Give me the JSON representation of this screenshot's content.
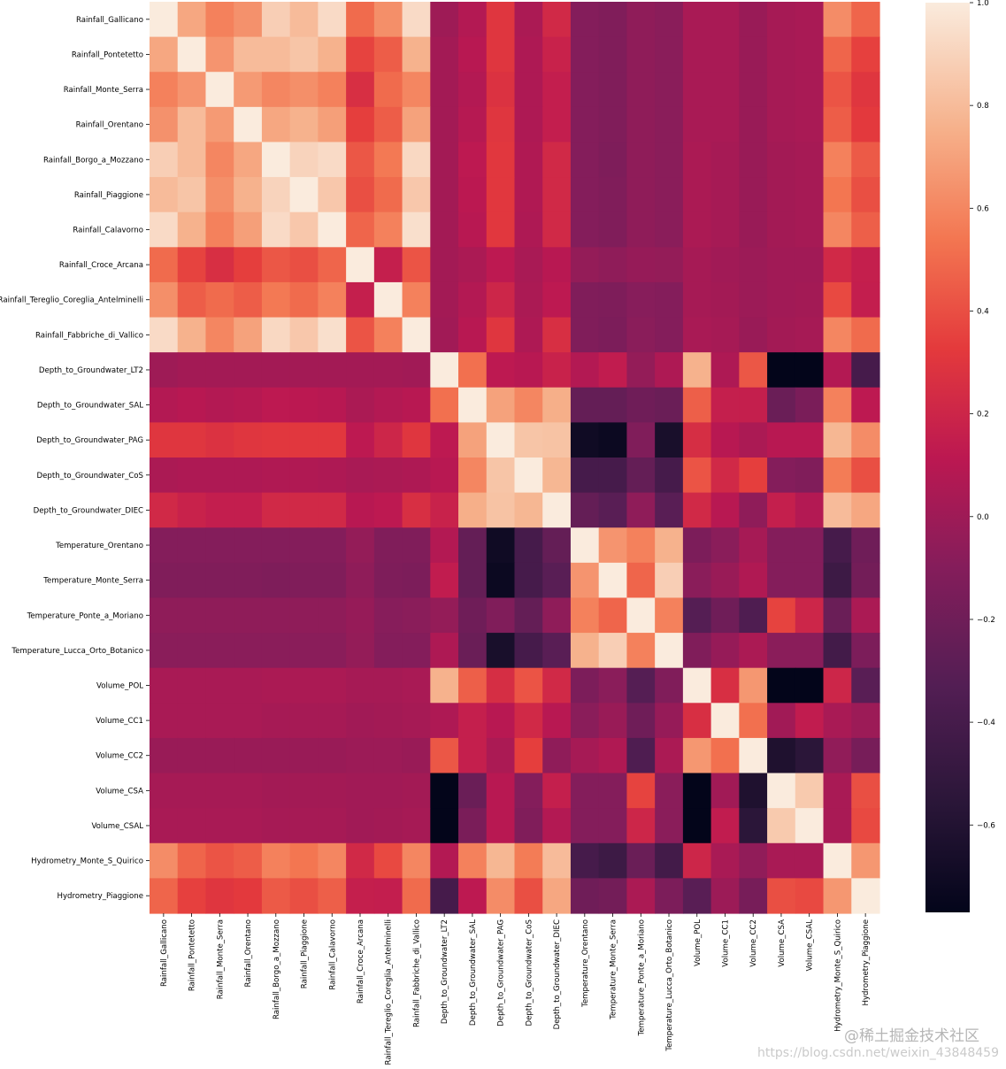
{
  "chart_data": {
    "type": "heatmap",
    "title": "",
    "colormap": "rocket",
    "vmin": -0.77,
    "vmax": 1.0,
    "colorbar_ticks": [
      1.0,
      0.8,
      0.6,
      0.4,
      0.2,
      0.0,
      -0.2,
      -0.4,
      -0.6
    ],
    "colorbar_tick_labels": [
      "1.0",
      "0.8",
      "0.6",
      "0.4",
      "0.2",
      "0.0",
      "−0.2",
      "−0.4",
      "−0.6"
    ],
    "labels": [
      "Rainfall_Gallicano",
      "Rainfall_Pontetetto",
      "Rainfall_Monte_Serra",
      "Rainfall_Orentano",
      "Rainfall_Borgo_a_Mozzano",
      "Rainfall_Piaggione",
      "Rainfall_Calavorno",
      "Rainfall_Croce_Arcana",
      "Rainfall_Tereglio_Coreglia_Antelminelli",
      "Rainfall_Fabbriche_di_Vallico",
      "Depth_to_Groundwater_LT2",
      "Depth_to_Groundwater_SAL",
      "Depth_to_Groundwater_PAG",
      "Depth_to_Groundwater_CoS",
      "Depth_to_Groundwater_DIEC",
      "Temperature_Orentano",
      "Temperature_Monte_Serra",
      "Temperature_Ponte_a_Moriano",
      "Temperature_Lucca_Orto_Botanico",
      "Volume_POL",
      "Volume_CC1",
      "Volume_CC2",
      "Volume_CSA",
      "Volume_CSAL",
      "Hydrometry_Monte_S_Quirico",
      "Hydrometry_Piaggione"
    ],
    "values": [
      [
        1.0,
        0.72,
        0.58,
        0.64,
        0.88,
        0.8,
        0.93,
        0.5,
        0.63,
        0.93,
        0.0,
        0.08,
        0.3,
        0.05,
        0.22,
        -0.1,
        -0.12,
        -0.06,
        -0.08,
        0.04,
        0.04,
        -0.02,
        0.03,
        0.04,
        0.62,
        0.48
      ],
      [
        0.72,
        1.0,
        0.65,
        0.8,
        0.8,
        0.84,
        0.76,
        0.36,
        0.45,
        0.76,
        0.02,
        0.1,
        0.3,
        0.06,
        0.18,
        -0.1,
        -0.12,
        -0.06,
        -0.08,
        0.04,
        0.04,
        -0.02,
        0.03,
        0.04,
        0.48,
        0.35
      ],
      [
        0.58,
        0.65,
        1.0,
        0.67,
        0.6,
        0.63,
        0.58,
        0.26,
        0.5,
        0.6,
        0.02,
        0.08,
        0.28,
        0.06,
        0.15,
        -0.1,
        -0.12,
        -0.06,
        -0.08,
        0.04,
        0.04,
        -0.02,
        0.03,
        0.04,
        0.42,
        0.3
      ],
      [
        0.64,
        0.8,
        0.67,
        1.0,
        0.72,
        0.76,
        0.69,
        0.34,
        0.45,
        0.7,
        0.02,
        0.09,
        0.3,
        0.06,
        0.15,
        -0.1,
        -0.12,
        -0.06,
        -0.08,
        0.04,
        0.04,
        -0.02,
        0.03,
        0.04,
        0.45,
        0.32
      ],
      [
        0.88,
        0.8,
        0.6,
        0.72,
        1.0,
        0.9,
        0.93,
        0.43,
        0.55,
        0.92,
        0.02,
        0.12,
        0.31,
        0.07,
        0.22,
        -0.1,
        -0.13,
        -0.06,
        -0.08,
        0.05,
        0.03,
        -0.02,
        0.02,
        0.03,
        0.58,
        0.44
      ],
      [
        0.8,
        0.84,
        0.63,
        0.76,
        0.9,
        1.0,
        0.85,
        0.4,
        0.5,
        0.85,
        0.02,
        0.11,
        0.31,
        0.07,
        0.22,
        -0.1,
        -0.12,
        -0.06,
        -0.08,
        0.05,
        0.03,
        -0.02,
        0.02,
        0.03,
        0.54,
        0.4
      ],
      [
        0.93,
        0.76,
        0.58,
        0.69,
        0.93,
        0.85,
        1.0,
        0.48,
        0.58,
        0.95,
        0.02,
        0.1,
        0.31,
        0.06,
        0.22,
        -0.1,
        -0.12,
        -0.06,
        -0.08,
        0.05,
        0.03,
        -0.02,
        0.02,
        0.03,
        0.6,
        0.46
      ],
      [
        0.5,
        0.36,
        0.26,
        0.34,
        0.43,
        0.4,
        0.48,
        1.0,
        0.16,
        0.42,
        0.02,
        0.05,
        0.12,
        0.04,
        0.1,
        -0.04,
        -0.06,
        -0.03,
        -0.04,
        0.03,
        0.01,
        -0.01,
        0.01,
        0.01,
        0.22,
        0.16
      ],
      [
        0.63,
        0.45,
        0.5,
        0.45,
        0.55,
        0.5,
        0.58,
        0.16,
        1.0,
        0.58,
        0.02,
        0.08,
        0.2,
        0.05,
        0.12,
        -0.12,
        -0.13,
        -0.09,
        -0.1,
        0.03,
        0.02,
        -0.01,
        0.01,
        0.02,
        0.38,
        0.15
      ],
      [
        0.93,
        0.76,
        0.6,
        0.7,
        0.92,
        0.85,
        0.95,
        0.42,
        0.58,
        1.0,
        0.01,
        0.1,
        0.3,
        0.06,
        0.26,
        -0.12,
        -0.14,
        -0.08,
        -0.1,
        0.04,
        0.03,
        -0.02,
        0.02,
        0.03,
        0.6,
        0.5
      ],
      [
        0.0,
        0.02,
        0.02,
        0.02,
        0.02,
        0.02,
        0.02,
        0.02,
        0.02,
        0.01,
        1.0,
        0.52,
        0.12,
        0.1,
        0.18,
        0.08,
        0.14,
        -0.04,
        0.06,
        0.76,
        0.06,
        0.43,
        -0.77,
        -0.77,
        0.08,
        -0.4
      ],
      [
        0.08,
        0.1,
        0.08,
        0.09,
        0.12,
        0.11,
        0.1,
        0.05,
        0.08,
        0.1,
        0.52,
        1.0,
        0.7,
        0.6,
        0.75,
        -0.25,
        -0.25,
        -0.2,
        -0.22,
        0.46,
        0.16,
        0.16,
        -0.22,
        -0.15,
        0.58,
        0.12
      ],
      [
        0.3,
        0.3,
        0.28,
        0.3,
        0.31,
        0.31,
        0.31,
        0.12,
        0.2,
        0.3,
        0.12,
        0.7,
        1.0,
        0.84,
        0.83,
        -0.7,
        -0.72,
        -0.12,
        -0.65,
        0.25,
        0.1,
        0.05,
        0.1,
        0.1,
        0.78,
        0.62
      ],
      [
        0.05,
        0.06,
        0.06,
        0.06,
        0.07,
        0.07,
        0.06,
        0.04,
        0.05,
        0.06,
        0.1,
        0.6,
        0.84,
        1.0,
        0.78,
        -0.4,
        -0.4,
        -0.25,
        -0.4,
        0.42,
        0.22,
        0.34,
        -0.1,
        -0.12,
        0.56,
        0.4
      ],
      [
        0.22,
        0.18,
        0.15,
        0.15,
        0.22,
        0.22,
        0.22,
        0.1,
        0.12,
        0.26,
        0.18,
        0.75,
        0.83,
        0.78,
        1.0,
        -0.25,
        -0.3,
        -0.06,
        -0.3,
        0.22,
        0.1,
        -0.06,
        0.16,
        0.08,
        0.8,
        0.72
      ],
      [
        -0.1,
        -0.1,
        -0.1,
        -0.1,
        -0.1,
        -0.1,
        -0.1,
        -0.04,
        -0.12,
        -0.12,
        0.08,
        -0.25,
        -0.7,
        -0.4,
        -0.25,
        1.0,
        0.65,
        0.58,
        0.76,
        -0.14,
        -0.08,
        0.03,
        -0.1,
        -0.1,
        -0.4,
        -0.2
      ],
      [
        -0.12,
        -0.12,
        -0.12,
        -0.12,
        -0.13,
        -0.12,
        -0.12,
        -0.06,
        -0.13,
        -0.14,
        0.14,
        -0.25,
        -0.72,
        -0.4,
        -0.3,
        0.65,
        1.0,
        0.48,
        0.88,
        -0.08,
        -0.02,
        0.07,
        -0.1,
        -0.1,
        -0.45,
        -0.18
      ],
      [
        -0.06,
        -0.06,
        -0.06,
        -0.06,
        -0.06,
        -0.06,
        -0.06,
        -0.03,
        -0.09,
        -0.08,
        -0.04,
        -0.2,
        -0.12,
        -0.25,
        -0.06,
        0.58,
        0.48,
        1.0,
        0.58,
        -0.32,
        -0.2,
        -0.35,
        0.36,
        0.2,
        -0.22,
        0.05
      ],
      [
        -0.08,
        -0.08,
        -0.08,
        -0.08,
        -0.08,
        -0.08,
        -0.08,
        -0.04,
        -0.1,
        -0.1,
        0.06,
        -0.22,
        -0.65,
        -0.4,
        -0.3,
        0.76,
        0.88,
        0.58,
        1.0,
        -0.12,
        -0.03,
        0.05,
        -0.08,
        -0.08,
        -0.42,
        -0.14
      ],
      [
        0.04,
        0.04,
        0.04,
        0.04,
        0.05,
        0.05,
        0.05,
        0.03,
        0.03,
        0.04,
        0.76,
        0.46,
        0.25,
        0.42,
        0.22,
        -0.14,
        -0.08,
        -0.32,
        -0.12,
        1.0,
        0.26,
        0.66,
        -0.77,
        -0.77,
        0.2,
        -0.3
      ],
      [
        0.04,
        0.04,
        0.04,
        0.04,
        0.03,
        0.03,
        0.03,
        0.01,
        0.02,
        0.03,
        0.06,
        0.16,
        0.1,
        0.22,
        0.1,
        -0.08,
        -0.02,
        -0.2,
        -0.03,
        0.26,
        1.0,
        0.52,
        0.01,
        0.14,
        0.04,
        -0.01
      ],
      [
        -0.02,
        -0.02,
        -0.02,
        -0.02,
        -0.02,
        -0.02,
        -0.02,
        -0.01,
        -0.01,
        -0.02,
        0.43,
        0.16,
        0.05,
        0.34,
        -0.06,
        0.03,
        0.07,
        -0.35,
        0.05,
        0.66,
        0.52,
        1.0,
        -0.62,
        -0.55,
        -0.05,
        -0.16
      ],
      [
        0.03,
        0.03,
        0.03,
        0.03,
        0.02,
        0.02,
        0.02,
        0.01,
        0.01,
        0.02,
        -0.77,
        -0.22,
        0.1,
        -0.1,
        0.16,
        -0.1,
        -0.1,
        0.36,
        -0.08,
        -0.77,
        0.01,
        -0.62,
        1.0,
        0.86,
        0.04,
        0.4
      ],
      [
        0.04,
        0.04,
        0.04,
        0.04,
        0.03,
        0.03,
        0.03,
        0.01,
        0.02,
        0.03,
        -0.77,
        -0.15,
        0.1,
        -0.12,
        0.08,
        -0.1,
        -0.1,
        0.2,
        -0.08,
        -0.77,
        0.14,
        -0.55,
        0.86,
        1.0,
        0.04,
        0.38
      ],
      [
        0.62,
        0.48,
        0.42,
        0.45,
        0.58,
        0.54,
        0.6,
        0.22,
        0.38,
        0.6,
        0.08,
        0.58,
        0.78,
        0.56,
        0.8,
        -0.4,
        -0.45,
        -0.22,
        -0.42,
        0.2,
        0.04,
        -0.05,
        0.04,
        0.04,
        1.0,
        0.66
      ],
      [
        0.48,
        0.35,
        0.3,
        0.32,
        0.44,
        0.4,
        0.46,
        0.16,
        0.15,
        0.5,
        -0.4,
        0.12,
        0.62,
        0.4,
        0.72,
        -0.2,
        -0.18,
        0.05,
        -0.14,
        -0.3,
        -0.01,
        -0.16,
        0.4,
        0.38,
        0.66,
        1.0
      ]
    ]
  },
  "watermark": {
    "line1": "@稀土掘金技术社区",
    "line2": "https://blog.csdn.net/weixin_43848459"
  }
}
